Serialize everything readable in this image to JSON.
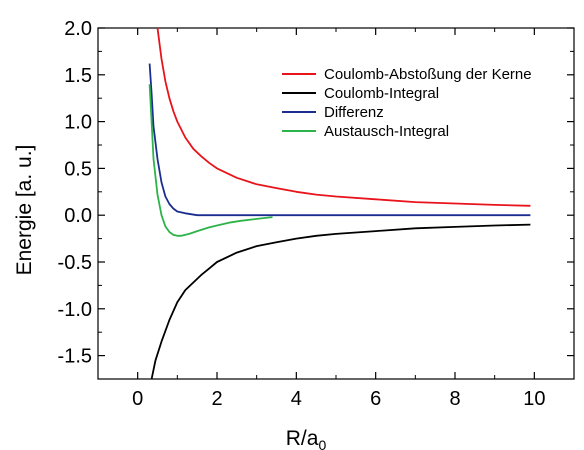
{
  "chart_data": {
    "type": "line",
    "xlabel": "R/a",
    "xlabel_subscript": "0",
    "ylabel": "Energie [a. u.]",
    "xlim": [
      -1,
      11
    ],
    "ylim": [
      -1.75,
      2.0
    ],
    "xticks": [
      0,
      2,
      4,
      6,
      8,
      10
    ],
    "yticks": [
      2.0,
      1.5,
      1.0,
      0.5,
      0.0,
      -0.5,
      -1.0,
      -1.5
    ],
    "xtick_labels": [
      "0",
      "2",
      "4",
      "6",
      "8",
      "10"
    ],
    "ytick_labels": [
      "2.0",
      "1.5",
      "1.0",
      "0.5",
      "0.0",
      "-0.5",
      "-1.0",
      "-1.5"
    ],
    "grid": false,
    "legend_position": "top-right",
    "series": [
      {
        "name": "Coulomb-Abstoßung der Kerne",
        "color": "#e8141b",
        "points": [
          [
            0.5,
            2.0
          ],
          [
            0.6,
            1.67
          ],
          [
            0.7,
            1.43
          ],
          [
            0.8,
            1.25
          ],
          [
            0.9,
            1.11
          ],
          [
            1.0,
            1.0
          ],
          [
            1.2,
            0.83
          ],
          [
            1.4,
            0.71
          ],
          [
            1.6,
            0.63
          ],
          [
            1.8,
            0.56
          ],
          [
            2.0,
            0.5
          ],
          [
            2.5,
            0.4
          ],
          [
            3.0,
            0.33
          ],
          [
            3.5,
            0.29
          ],
          [
            4.0,
            0.25
          ],
          [
            4.5,
            0.22
          ],
          [
            5.0,
            0.2
          ],
          [
            6.0,
            0.17
          ],
          [
            7.0,
            0.14
          ],
          [
            8.0,
            0.125
          ],
          [
            9.0,
            0.11
          ],
          [
            9.9,
            0.1
          ]
        ]
      },
      {
        "name": "Coulomb-Integral",
        "color": "#000000",
        "points": [
          [
            0.35,
            -1.75
          ],
          [
            0.45,
            -1.55
          ],
          [
            0.6,
            -1.35
          ],
          [
            0.8,
            -1.12
          ],
          [
            1.0,
            -0.93
          ],
          [
            1.2,
            -0.8
          ],
          [
            1.4,
            -0.72
          ],
          [
            1.6,
            -0.64
          ],
          [
            1.8,
            -0.57
          ],
          [
            2.0,
            -0.5
          ],
          [
            2.5,
            -0.4
          ],
          [
            3.0,
            -0.33
          ],
          [
            3.5,
            -0.29
          ],
          [
            4.0,
            -0.25
          ],
          [
            4.5,
            -0.22
          ],
          [
            5.0,
            -0.2
          ],
          [
            6.0,
            -0.17
          ],
          [
            7.0,
            -0.14
          ],
          [
            8.0,
            -0.125
          ],
          [
            9.0,
            -0.11
          ],
          [
            9.9,
            -0.1
          ]
        ]
      },
      {
        "name": "Differenz",
        "color": "#1b2e8f",
        "points": [
          [
            0.3,
            1.62
          ],
          [
            0.35,
            1.3
          ],
          [
            0.4,
            0.95
          ],
          [
            0.5,
            0.6
          ],
          [
            0.6,
            0.35
          ],
          [
            0.7,
            0.2
          ],
          [
            0.8,
            0.12
          ],
          [
            0.9,
            0.07
          ],
          [
            1.0,
            0.04
          ],
          [
            1.2,
            0.02
          ],
          [
            1.5,
            0.0
          ],
          [
            2.0,
            0.0
          ],
          [
            4.0,
            0.0
          ],
          [
            6.0,
            0.0
          ],
          [
            8.0,
            0.0
          ],
          [
            9.9,
            0.0
          ]
        ]
      },
      {
        "name": "Austausch-Integral",
        "color": "#2cb34a",
        "points": [
          [
            0.3,
            1.4
          ],
          [
            0.35,
            1.0
          ],
          [
            0.4,
            0.6
          ],
          [
            0.5,
            0.22
          ],
          [
            0.6,
            0.0
          ],
          [
            0.7,
            -0.12
          ],
          [
            0.8,
            -0.18
          ],
          [
            0.9,
            -0.21
          ],
          [
            1.0,
            -0.22
          ],
          [
            1.1,
            -0.22
          ],
          [
            1.3,
            -0.2
          ],
          [
            1.5,
            -0.17
          ],
          [
            1.8,
            -0.13
          ],
          [
            2.0,
            -0.11
          ],
          [
            2.3,
            -0.08
          ],
          [
            2.6,
            -0.06
          ],
          [
            3.0,
            -0.04
          ],
          [
            3.4,
            -0.02
          ]
        ]
      }
    ]
  }
}
